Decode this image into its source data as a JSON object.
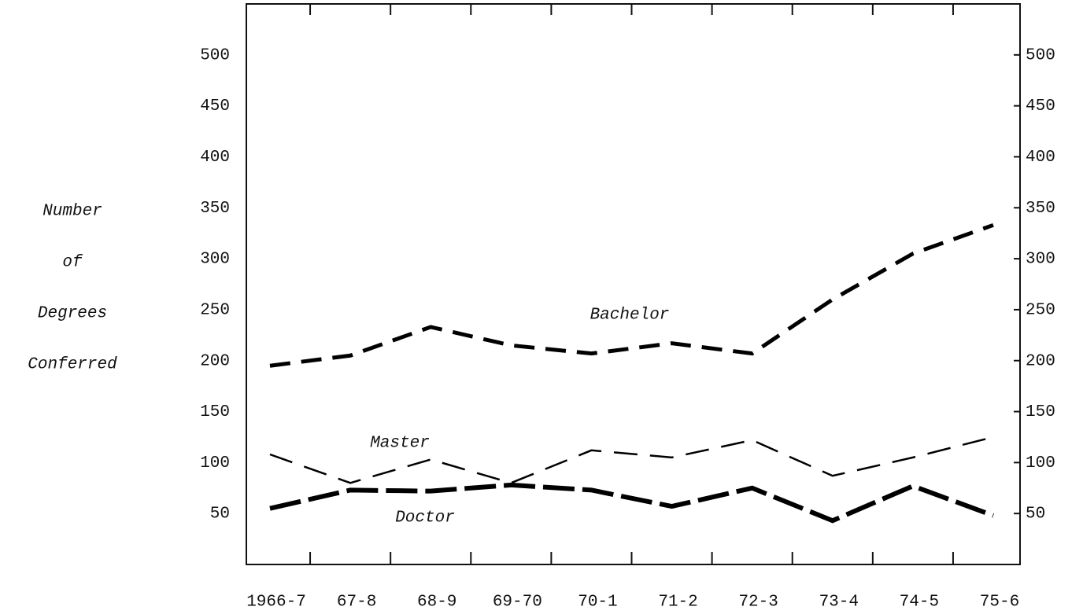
{
  "chart_data": {
    "type": "line",
    "ylabel": [
      "Number",
      "of",
      "Degrees",
      "Conferred"
    ],
    "categories": [
      "1966-7",
      "67-8",
      "68-9",
      "69-70",
      "70-1",
      "71-2",
      "72-3",
      "73-4",
      "74-5",
      "75-6"
    ],
    "series": [
      {
        "name": "Bachelor",
        "color": "#000000",
        "values": [
          195,
          205,
          233,
          215,
          207,
          217,
          207,
          260,
          305,
          333
        ]
      },
      {
        "name": "Master",
        "color": "#000000",
        "values": [
          108,
          80,
          103,
          80,
          112,
          105,
          122,
          87,
          105,
          125
        ]
      },
      {
        "name": "Doctor",
        "color": "#000000",
        "values": [
          55,
          73,
          72,
          78,
          73,
          57,
          75,
          43,
          77,
          48
        ]
      }
    ],
    "ylim": [
      0,
      550
    ],
    "yticks": [
      50,
      100,
      150,
      200,
      250,
      300,
      350,
      400,
      450,
      500
    ],
    "grid": false
  }
}
